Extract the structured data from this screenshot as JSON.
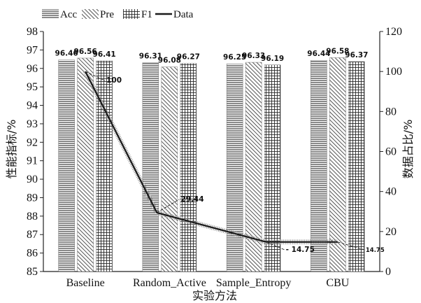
{
  "chart_data": {
    "type": "bar",
    "categories": [
      "Baseline",
      "Random_Active",
      "Sample_Entropy",
      "CBU"
    ],
    "xlabel": "实验方法",
    "ylabel": "性能指标/%",
    "y2label": "数据占比/%",
    "ylim": [
      85,
      98
    ],
    "yticks": [
      85,
      86,
      87,
      88,
      89,
      90,
      91,
      92,
      93,
      94,
      95,
      96,
      97,
      98
    ],
    "y2lim": [
      0,
      120
    ],
    "y2ticks": [
      0,
      20,
      40,
      60,
      80,
      100,
      120
    ],
    "legend_position": "top-left",
    "grid": false,
    "series": [
      {
        "name": "Acc",
        "kind": "bar",
        "pattern": "horizontal-lines",
        "values": [
          96.46,
          96.31,
          96.25,
          96.44
        ],
        "labels": [
          "96.46",
          "96.31",
          "96.25",
          "96.44"
        ]
      },
      {
        "name": "Pre",
        "kind": "bar",
        "pattern": "diagonal-lines",
        "values": [
          96.56,
          96.08,
          96.33,
          96.58
        ],
        "labels": [
          "96.56",
          "96.08",
          "96.33",
          "96.58"
        ]
      },
      {
        "name": "F1",
        "kind": "bar",
        "pattern": "grid",
        "values": [
          96.41,
          96.27,
          96.19,
          96.37
        ],
        "labels": [
          "96.41",
          "96.27",
          "96.19",
          "96.37"
        ]
      },
      {
        "name": "Data",
        "kind": "line",
        "axis": "right",
        "x": [
          0,
          0.85,
          2.15,
          3.0
        ],
        "values": [
          100,
          29.44,
          14.75,
          14.75
        ],
        "labels": [
          "100",
          "29.44",
          "14.75",
          "14.75"
        ]
      }
    ],
    "colors": {
      "bar_fill": "#ffffff",
      "pattern": "#2a2a2a",
      "line": "#1a1a1a",
      "axis": "#222222"
    }
  }
}
